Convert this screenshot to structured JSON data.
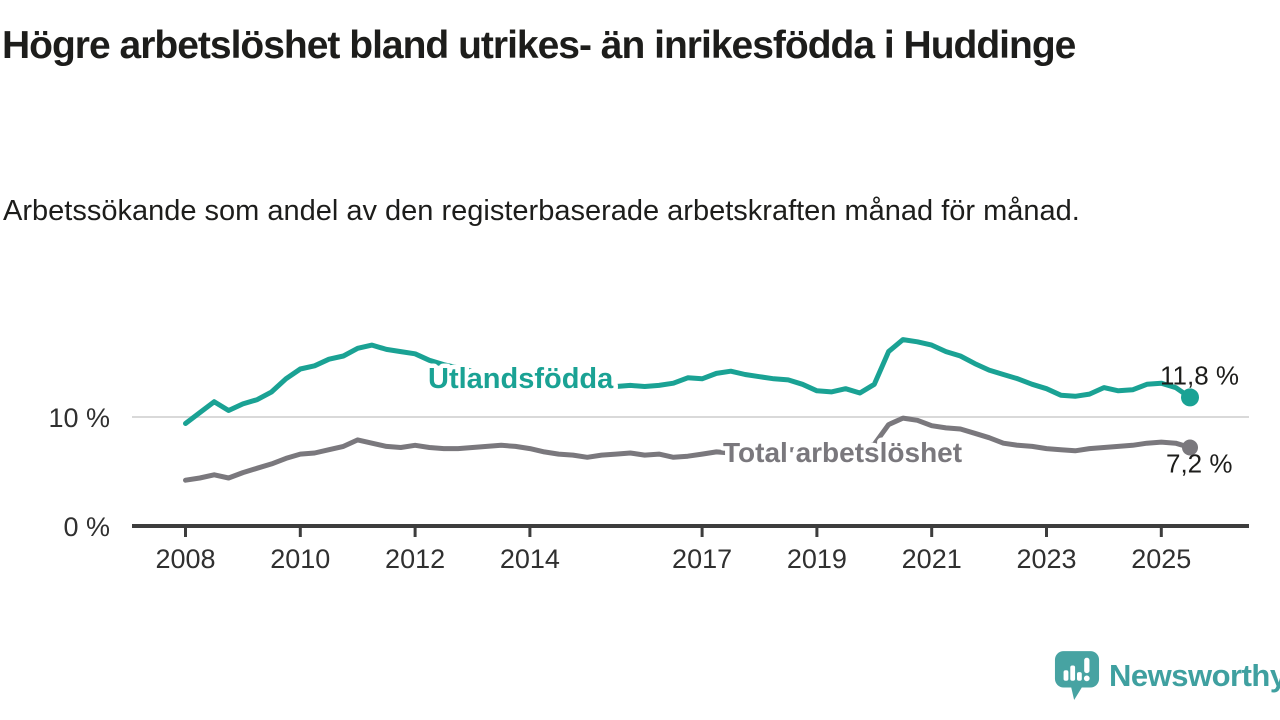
{
  "header": {
    "title": "Högre arbetslöshet bland utrikes- än inrikesfödda i Huddinge",
    "subtitle": "Arbetssökande som andel av den registerbaserade arbetskraften månad för månad."
  },
  "footer": {
    "brand": "Newsworthy"
  },
  "colors": {
    "teal_line": "#1aa294",
    "gray_line": "#7a787d",
    "axis": "#3d3d3d",
    "gridline": "#d9d9d9",
    "text": "#1d1d1b",
    "logo_teal": "#47a3a2"
  },
  "chart_data": {
    "type": "line",
    "title": "Högre arbetslöshet bland utrikes- än inrikesfödda i Huddinge",
    "subtitle": "Arbetssökande som andel av den registerbaserade arbetskraften månad för månad.",
    "xlabel": "",
    "ylabel": "",
    "x_start": 2008,
    "x_step_years": 0.25,
    "x_end": 2025.5,
    "x_ticks": [
      2008,
      2010,
      2012,
      2014,
      2017,
      2019,
      2021,
      2023,
      2025
    ],
    "y_ticks": [
      {
        "value": 0,
        "label": "0 %"
      },
      {
        "value": 10,
        "label": "10 %"
      }
    ],
    "ylim": [
      0,
      18
    ],
    "grid": "single horizontal gridline at 10 %",
    "legend": "inline labels on lines, value labels at line ends",
    "series": [
      {
        "name": "Utlandsfödda",
        "color": "#1aa294",
        "end_label": "11,8 %",
        "end_value": 11.8,
        "values": [
          9.4,
          10.4,
          11.4,
          10.6,
          11.2,
          11.6,
          12.3,
          13.5,
          14.4,
          14.7,
          15.3,
          15.6,
          16.3,
          16.6,
          16.2,
          16.0,
          15.8,
          15.2,
          14.8,
          14.5,
          14.2,
          13.9,
          13.6,
          13.4,
          13.2,
          13.0,
          12.9,
          12.8,
          12.6,
          12.9,
          12.8,
          12.9,
          12.8,
          12.9,
          13.1,
          13.6,
          13.5,
          14.0,
          14.2,
          13.9,
          13.7,
          13.5,
          13.4,
          13.0,
          12.4,
          12.3,
          12.6,
          12.2,
          13.0,
          16.0,
          17.1,
          16.9,
          16.6,
          16.0,
          15.6,
          14.9,
          14.3,
          13.9,
          13.5,
          13.0,
          12.6,
          12.0,
          11.9,
          12.1,
          12.7,
          12.4,
          12.5,
          13.0,
          13.1,
          12.7,
          11.8
        ]
      },
      {
        "name": "Total arbetslöshet",
        "color": "#7a787d",
        "end_label": "7,2 %",
        "end_value": 7.2,
        "values": [
          4.2,
          4.4,
          4.7,
          4.4,
          4.9,
          5.3,
          5.7,
          6.2,
          6.6,
          6.7,
          7.0,
          7.3,
          7.9,
          7.6,
          7.3,
          7.2,
          7.4,
          7.2,
          7.1,
          7.1,
          7.2,
          7.3,
          7.4,
          7.3,
          7.1,
          6.8,
          6.6,
          6.5,
          6.3,
          6.5,
          6.6,
          6.7,
          6.5,
          6.6,
          6.3,
          6.4,
          6.6,
          6.8,
          6.7,
          7.0,
          7.0,
          7.1,
          7.0,
          7.0,
          6.9,
          6.8,
          6.9,
          7.0,
          7.5,
          9.3,
          9.9,
          9.7,
          9.2,
          9.0,
          8.9,
          8.5,
          8.1,
          7.6,
          7.4,
          7.3,
          7.1,
          7.0,
          6.9,
          7.1,
          7.2,
          7.3,
          7.4,
          7.6,
          7.7,
          7.6,
          7.2
        ]
      }
    ]
  }
}
